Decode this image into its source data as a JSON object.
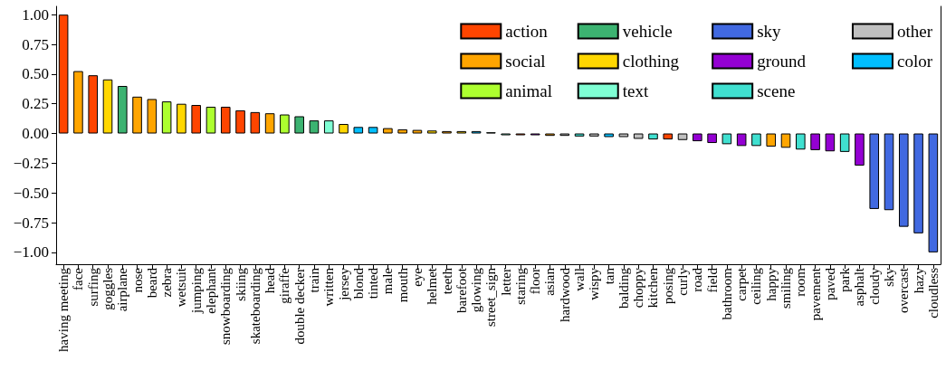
{
  "chart_data": {
    "type": "bar",
    "categories": [
      "having meeting",
      "face",
      "surfing",
      "goggles",
      "airplane",
      "nose",
      "beard",
      "zebra",
      "wetsuit",
      "jumping",
      "elephant",
      "snowboarding",
      "skiing",
      "skateboarding",
      "head",
      "giraffe",
      "double decker",
      "train",
      "written",
      "jersey",
      "blond",
      "tinted",
      "male",
      "mouth",
      "eye",
      "helmet",
      "teeth",
      "barefoot",
      "glowing",
      "street_sign",
      "letter",
      "staring",
      "floor",
      "asian",
      "hardwood",
      "wall",
      "wispy",
      "tan",
      "balding",
      "choppy",
      "kitchen",
      "posing",
      "curly",
      "road",
      "field",
      "bathroom",
      "carpet",
      "ceiling",
      "happy",
      "smiling",
      "room",
      "pavement",
      "paved",
      "park",
      "asphalt",
      "cloudy",
      "sky",
      "overcast",
      "hazy",
      "cloudless"
    ],
    "series": [
      {
        "name": "action",
        "color": "#ff4500",
        "values": [
          1.0,
          null,
          0.49,
          null,
          null,
          null,
          null,
          null,
          null,
          0.24,
          null,
          0.225,
          0.195,
          0.18,
          null,
          null,
          null,
          null,
          null,
          null,
          null,
          null,
          null,
          null,
          null,
          null,
          null,
          null,
          null,
          null,
          null,
          -0.015,
          null,
          null,
          null,
          null,
          null,
          null,
          null,
          null,
          null,
          -0.05,
          null,
          null,
          null,
          null,
          null,
          null,
          null,
          null,
          null,
          null,
          null,
          null,
          null,
          null,
          null,
          null,
          null,
          null
        ]
      },
      {
        "name": "social",
        "color": "#ffa500",
        "values": [
          null,
          0.525,
          null,
          null,
          null,
          0.31,
          0.29,
          null,
          null,
          null,
          null,
          null,
          null,
          null,
          0.17,
          null,
          null,
          null,
          null,
          null,
          null,
          null,
          0.045,
          0.035,
          0.03,
          null,
          0.02,
          null,
          null,
          null,
          null,
          null,
          null,
          -0.02,
          null,
          null,
          null,
          null,
          null,
          null,
          null,
          null,
          null,
          null,
          null,
          null,
          null,
          null,
          -0.11,
          -0.12,
          null,
          null,
          null,
          null,
          null,
          null,
          null,
          null,
          null,
          null
        ]
      },
      {
        "name": "animal",
        "color": "#adff2f",
        "values": [
          null,
          null,
          null,
          null,
          null,
          null,
          null,
          0.27,
          null,
          null,
          0.225,
          null,
          null,
          null,
          null,
          0.16,
          null,
          null,
          null,
          null,
          null,
          null,
          null,
          null,
          null,
          null,
          null,
          null,
          null,
          null,
          null,
          null,
          null,
          null,
          null,
          null,
          null,
          null,
          null,
          null,
          null,
          null,
          null,
          null,
          null,
          null,
          null,
          null,
          null,
          null,
          null,
          null,
          null,
          null,
          null,
          null,
          null,
          null,
          null,
          null
        ]
      },
      {
        "name": "vehicle",
        "color": "#3cb371",
        "values": [
          null,
          null,
          null,
          null,
          0.4,
          null,
          null,
          null,
          null,
          null,
          null,
          null,
          null,
          null,
          null,
          null,
          0.145,
          0.11,
          null,
          null,
          null,
          null,
          null,
          null,
          null,
          null,
          null,
          null,
          null,
          0.01,
          null,
          null,
          null,
          null,
          null,
          null,
          null,
          null,
          null,
          null,
          null,
          null,
          null,
          null,
          null,
          null,
          null,
          null,
          null,
          null,
          null,
          null,
          null,
          null,
          null,
          null,
          null,
          null,
          null,
          null
        ]
      },
      {
        "name": "clothing",
        "color": "#ffd700",
        "values": [
          null,
          null,
          null,
          0.455,
          null,
          null,
          null,
          null,
          0.25,
          null,
          null,
          null,
          null,
          null,
          null,
          null,
          null,
          null,
          null,
          0.08,
          null,
          null,
          null,
          null,
          null,
          0.025,
          null,
          0.02,
          null,
          null,
          null,
          null,
          null,
          null,
          null,
          null,
          null,
          null,
          null,
          null,
          null,
          null,
          null,
          null,
          null,
          null,
          null,
          null,
          null,
          null,
          null,
          null,
          null,
          null,
          null,
          null,
          null,
          null,
          null,
          null
        ]
      },
      {
        "name": "text",
        "color": "#7fffd4",
        "values": [
          null,
          null,
          null,
          null,
          null,
          null,
          null,
          null,
          null,
          null,
          null,
          null,
          null,
          null,
          null,
          null,
          null,
          null,
          0.11,
          null,
          null,
          null,
          null,
          null,
          null,
          null,
          null,
          null,
          null,
          null,
          -0.015,
          null,
          null,
          null,
          null,
          null,
          null,
          null,
          null,
          null,
          null,
          null,
          null,
          null,
          null,
          null,
          null,
          null,
          null,
          null,
          null,
          null,
          null,
          null,
          null,
          null,
          null,
          null,
          null,
          null
        ]
      },
      {
        "name": "sky",
        "color": "#4169e1",
        "values": [
          null,
          null,
          null,
          null,
          null,
          null,
          null,
          null,
          null,
          null,
          null,
          null,
          null,
          null,
          null,
          null,
          null,
          null,
          null,
          null,
          null,
          null,
          null,
          null,
          null,
          null,
          null,
          null,
          null,
          null,
          null,
          null,
          null,
          null,
          null,
          null,
          null,
          null,
          null,
          null,
          null,
          null,
          null,
          null,
          null,
          null,
          null,
          null,
          null,
          null,
          null,
          null,
          null,
          null,
          null,
          -0.635,
          -0.645,
          -0.785,
          -0.84,
          -1.0
        ]
      },
      {
        "name": "ground",
        "color": "#9400d3",
        "values": [
          null,
          null,
          null,
          null,
          null,
          null,
          null,
          null,
          null,
          null,
          null,
          null,
          null,
          null,
          null,
          null,
          null,
          null,
          null,
          null,
          null,
          null,
          null,
          null,
          null,
          null,
          null,
          null,
          null,
          null,
          null,
          null,
          -0.015,
          null,
          null,
          null,
          null,
          null,
          null,
          null,
          null,
          null,
          null,
          -0.065,
          -0.08,
          null,
          -0.105,
          null,
          null,
          null,
          null,
          -0.14,
          -0.15,
          null,
          -0.27,
          null,
          null,
          null,
          null,
          null
        ]
      },
      {
        "name": "scene",
        "color": "#40e0d0",
        "values": [
          null,
          null,
          null,
          null,
          null,
          null,
          null,
          null,
          null,
          null,
          null,
          null,
          null,
          null,
          null,
          null,
          null,
          null,
          null,
          null,
          null,
          null,
          null,
          null,
          null,
          null,
          null,
          null,
          null,
          null,
          null,
          null,
          null,
          null,
          null,
          -0.025,
          null,
          null,
          null,
          null,
          -0.05,
          null,
          null,
          null,
          null,
          -0.09,
          null,
          -0.105,
          null,
          null,
          -0.135,
          null,
          null,
          -0.155,
          null,
          null,
          null,
          null,
          null,
          null
        ]
      },
      {
        "name": "other",
        "color": "#c0c0c0",
        "values": [
          null,
          null,
          null,
          null,
          null,
          null,
          null,
          null,
          null,
          null,
          null,
          null,
          null,
          null,
          null,
          null,
          null,
          null,
          null,
          null,
          null,
          null,
          null,
          null,
          null,
          null,
          null,
          null,
          null,
          null,
          null,
          null,
          null,
          null,
          -0.02,
          null,
          -0.025,
          null,
          -0.03,
          -0.045,
          null,
          null,
          -0.055,
          null,
          null,
          null,
          null,
          null,
          null,
          null,
          null,
          null,
          null,
          null,
          null,
          null,
          null,
          null,
          null,
          null
        ]
      },
      {
        "name": "color",
        "color": "#00bfff",
        "values": [
          null,
          null,
          null,
          null,
          null,
          null,
          null,
          null,
          null,
          null,
          null,
          null,
          null,
          null,
          null,
          null,
          null,
          null,
          null,
          null,
          0.055,
          0.055,
          null,
          null,
          null,
          null,
          null,
          null,
          0.02,
          null,
          null,
          null,
          null,
          null,
          null,
          null,
          null,
          -0.03,
          null,
          null,
          null,
          null,
          null,
          null,
          null,
          null,
          null,
          null,
          null,
          null,
          null,
          null,
          null,
          null,
          null,
          null,
          null,
          null,
          null,
          null
        ]
      }
    ],
    "ylim": [
      -1.1,
      1.07
    ],
    "yticks": [
      {
        "value": -1,
        "label": "−1.00"
      },
      {
        "value": -0.75,
        "label": "−0.75"
      },
      {
        "value": -0.5,
        "label": "−0.50"
      },
      {
        "value": -0.25,
        "label": "−0.25"
      },
      {
        "value": 0,
        "label": "0.00"
      },
      {
        "value": 0.25,
        "label": "0.25"
      },
      {
        "value": 0.5,
        "label": "0.50"
      },
      {
        "value": 0.75,
        "label": "0.75"
      },
      {
        "value": 1,
        "label": "1.00"
      }
    ],
    "grid": false,
    "legend": "top right"
  }
}
